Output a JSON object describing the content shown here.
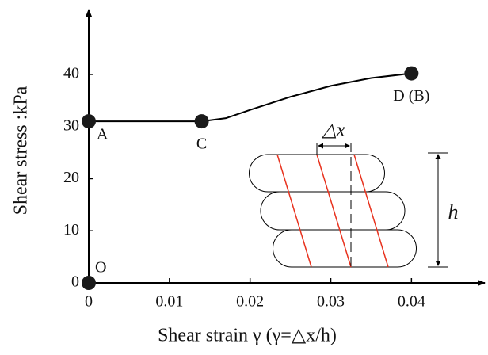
{
  "chart_data": {
    "type": "line",
    "xlabel": "Shear strain γ (γ=△x/h)",
    "ylabel": "Shear stress :kPa",
    "x": [
      0,
      0,
      0.014,
      0.017,
      0.02,
      0.025,
      0.03,
      0.035,
      0.04
    ],
    "values": [
      0,
      31,
      31,
      31.6,
      33.2,
      35.7,
      37.8,
      39.3,
      40.2
    ],
    "color": "#000000",
    "points": [
      {
        "label": "O",
        "x": 0,
        "y": 0
      },
      {
        "label": "A",
        "x": 0,
        "y": 31
      },
      {
        "label": "C",
        "x": 0.014,
        "y": 31
      },
      {
        "label": "D (B)",
        "x": 0.04,
        "y": 40.2
      }
    ],
    "xlim": [
      0,
      0.0489
    ],
    "ylim": [
      0,
      52
    ],
    "xticks": [
      0,
      0.01,
      0.02,
      0.03,
      0.04
    ],
    "yticks": [
      0,
      10,
      20,
      30,
      40
    ],
    "inset": {
      "dx_label": "△x",
      "h_label": "h"
    }
  }
}
